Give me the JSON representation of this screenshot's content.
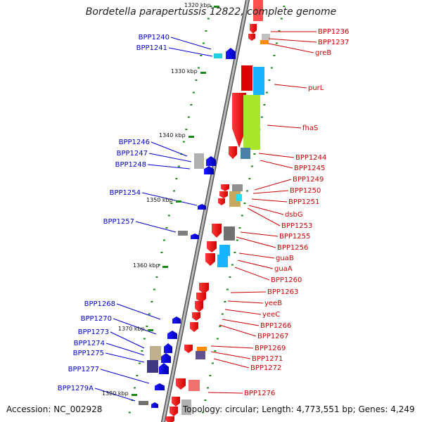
{
  "title": "Bordetella parapertussis 12822, complete genome",
  "footer": {
    "accession": "Accession: NC_002928",
    "topology": "Topology: circular; Length: 4,773,551 bp; Genes: 4,249"
  },
  "colors": {
    "forward_label": "#cc0000",
    "reverse_label": "#0000cc",
    "backbone": "#8c8c8c",
    "tick": "#1a8a1a"
  },
  "kbp_markers": [
    "1320 kbp",
    "1330 kbp",
    "1340 kbp",
    "1350 kbp",
    "1360 kbp",
    "1370 kbp",
    "1380 kbp"
  ],
  "right_labels": [
    "BPP1236",
    "BPP1237",
    "greB",
    "purL",
    "fhaS",
    "BPP1244",
    "BPP1245",
    "BPP1249",
    "BPP1250",
    "BPP1251",
    "dsbG",
    "BPP1253",
    "BPP1255",
    "BPP1256",
    "guaB",
    "guaA",
    "BPP1260",
    "BPP1263",
    "yeeB",
    "yeeC",
    "BPP1266",
    "BPP1267",
    "BPP1269",
    "BPP1271",
    "BPP1272",
    "BPP1276"
  ],
  "left_labels": [
    "BPP1240",
    "BPP1241",
    "BPP1246",
    "BPP1247",
    "BPP1248",
    "BPP1254",
    "BPP1257",
    "BPP1268",
    "BPP1270",
    "BPP1273",
    "BPP1274",
    "BPP1275",
    "BPP1277",
    "BPP1279A"
  ]
}
